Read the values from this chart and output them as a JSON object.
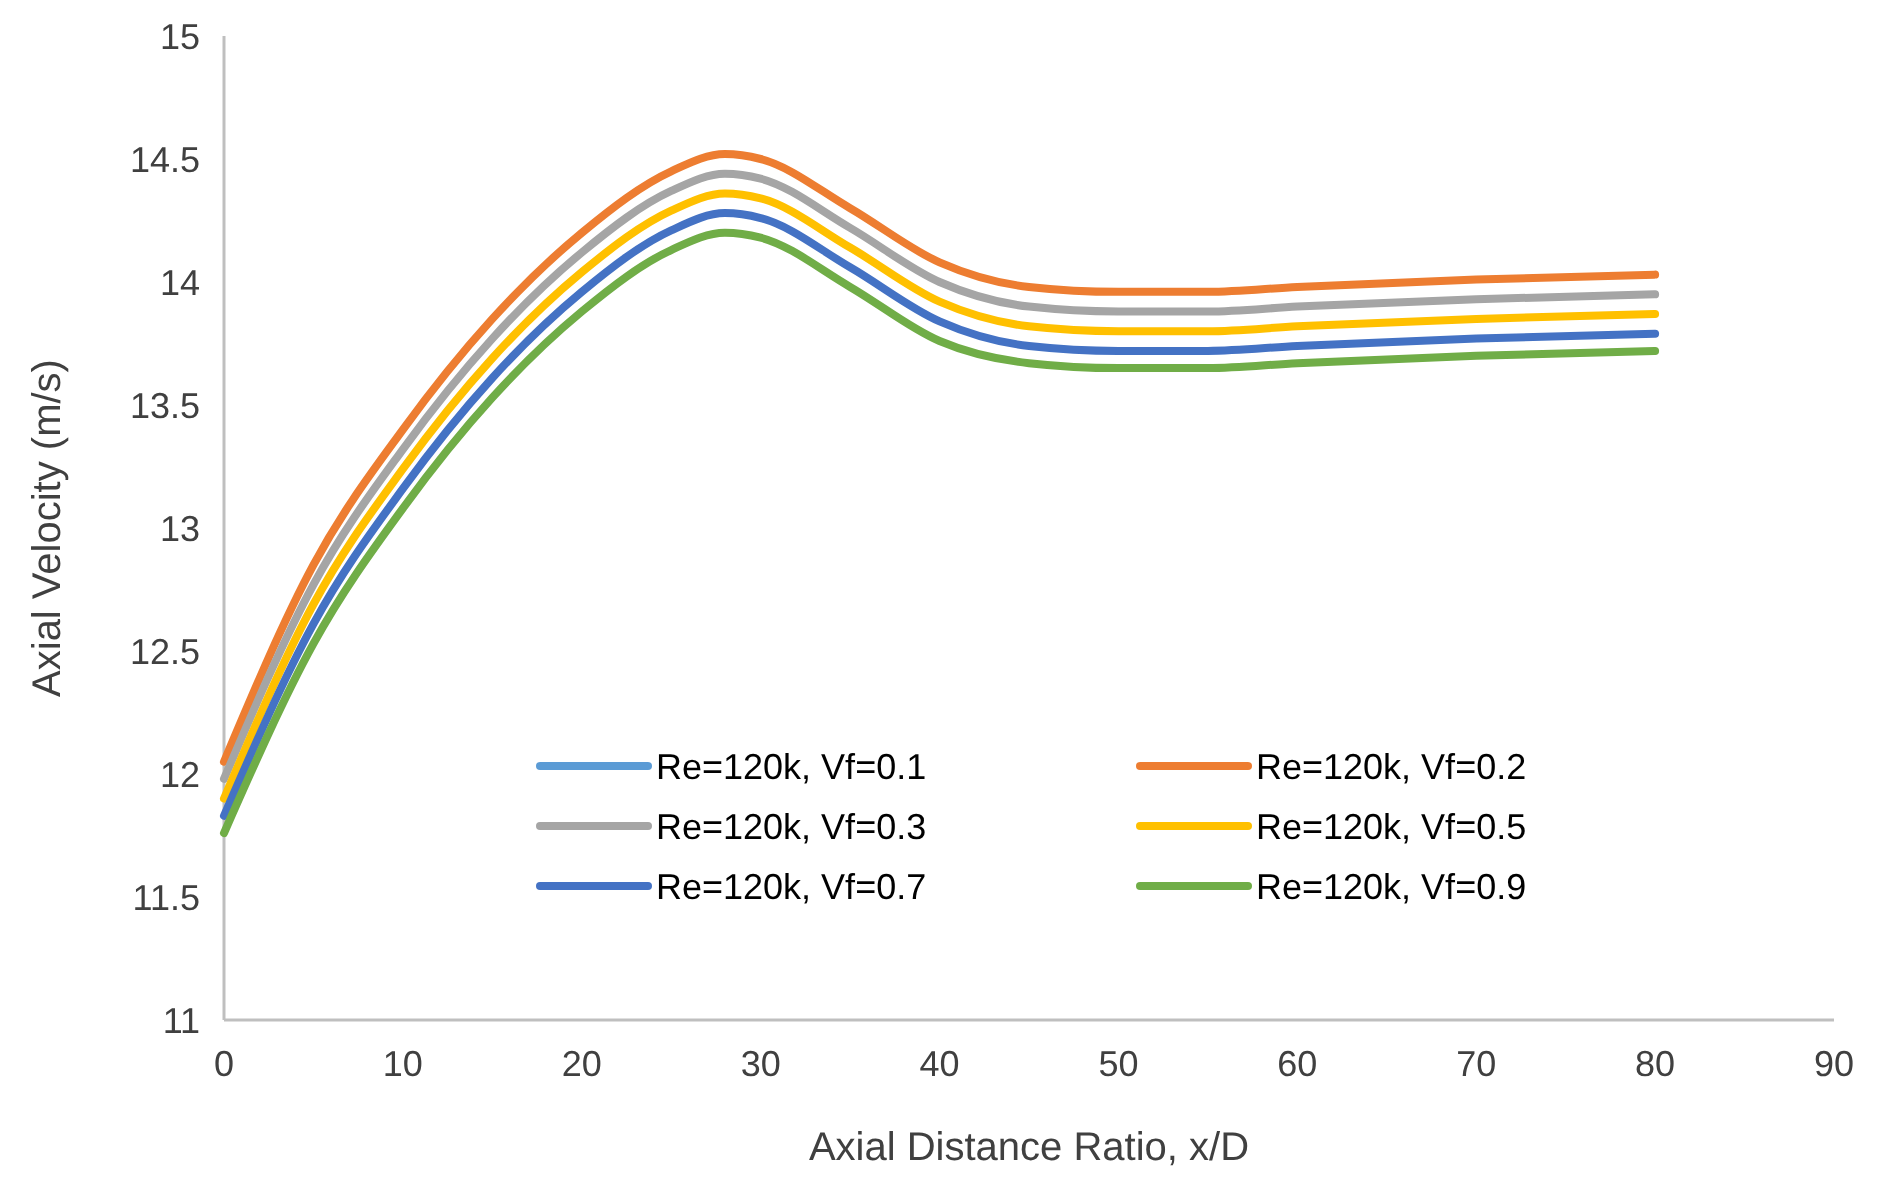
{
  "chart_data": {
    "type": "line",
    "xlabel": "Axial Distance Ratio, x/D",
    "ylabel": "Axial Velocity (m/s)",
    "x": [
      0,
      5,
      10,
      15,
      20,
      25,
      28,
      30,
      35,
      40,
      45,
      50,
      55,
      60,
      70,
      80
    ],
    "xlim": [
      0,
      90
    ],
    "xticks": [
      0,
      10,
      20,
      30,
      40,
      50,
      60,
      70,
      80,
      90
    ],
    "ylim": [
      11,
      15
    ],
    "yticks": [
      11,
      11.5,
      12,
      12.5,
      13,
      13.5,
      14,
      14.5,
      15
    ],
    "grid": false,
    "legend": "bottom",
    "marker": "none",
    "line_style": "solid",
    "series": [
      {
        "name": "Re=120k, Vf=0.1",
        "color": "#5b9bd5",
        "values": [
          null,
          null,
          null,
          null,
          null,
          null,
          null,
          null,
          null,
          null,
          null,
          null,
          null,
          null,
          null,
          null
        ]
      },
      {
        "name": "Re=120k, Vf=0.2",
        "color": "#ed7d31",
        "values": [
          12.05,
          12.85,
          13.4,
          13.85,
          14.2,
          14.45,
          14.52,
          14.5,
          14.3,
          14.08,
          13.98,
          13.96,
          13.96,
          13.98,
          14.01,
          14.03
        ]
      },
      {
        "name": "Re=120k, Vf=0.3",
        "color": "#a5a5a5",
        "values": [
          11.98,
          12.77,
          13.32,
          13.77,
          14.12,
          14.37,
          14.44,
          14.42,
          14.22,
          14.0,
          13.9,
          13.88,
          13.88,
          13.9,
          13.93,
          13.95
        ]
      },
      {
        "name": "Re=120k, Vf=0.5",
        "color": "#ffc000",
        "values": [
          11.9,
          12.69,
          13.24,
          13.69,
          14.04,
          14.29,
          14.36,
          14.34,
          14.14,
          13.92,
          13.82,
          13.8,
          13.8,
          13.82,
          13.85,
          13.87
        ]
      },
      {
        "name": "Re=120k, Vf=0.7",
        "color": "#4472c4",
        "values": [
          11.83,
          12.61,
          13.16,
          13.61,
          13.96,
          14.21,
          14.28,
          14.26,
          14.06,
          13.84,
          13.74,
          13.72,
          13.72,
          13.74,
          13.77,
          13.79
        ]
      },
      {
        "name": "Re=120k, Vf=0.9",
        "color": "#70ad47",
        "values": [
          11.76,
          12.53,
          13.08,
          13.53,
          13.88,
          14.13,
          14.2,
          14.18,
          13.98,
          13.76,
          13.67,
          13.65,
          13.65,
          13.67,
          13.7,
          13.72
        ]
      }
    ]
  }
}
